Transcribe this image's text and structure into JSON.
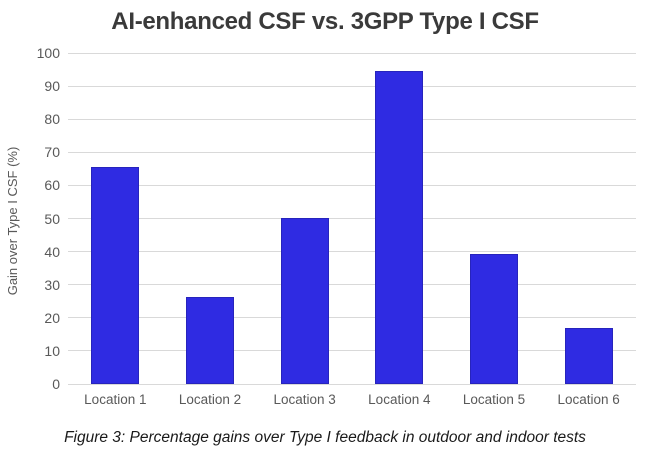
{
  "figure": {
    "caption": "Figure 3: Percentage gains over Type I feedback in outdoor and indoor tests"
  },
  "chart_data": {
    "type": "bar",
    "title": "AI-enhanced CSF vs. 3GPP Type I CSF",
    "categories": [
      "Location 1",
      "Location 2",
      "Location 3",
      "Location 4",
      "Location 5",
      "Location 6"
    ],
    "values": [
      65.7,
      26.3,
      50.2,
      94.7,
      39.3,
      16.9
    ],
    "xlabel": "",
    "ylabel": "Gain over Type I CSF (%)",
    "ylim": [
      0,
      100
    ],
    "ytick_step": 10,
    "grid": true,
    "legend": "none",
    "colors": {
      "bar_fill": "#2f2be2",
      "bar_border": "#2724bc",
      "gridline": "#d9d9d9",
      "tick_label": "#595959",
      "title": "#3a3a3a",
      "caption": "#1a1a1a"
    }
  }
}
